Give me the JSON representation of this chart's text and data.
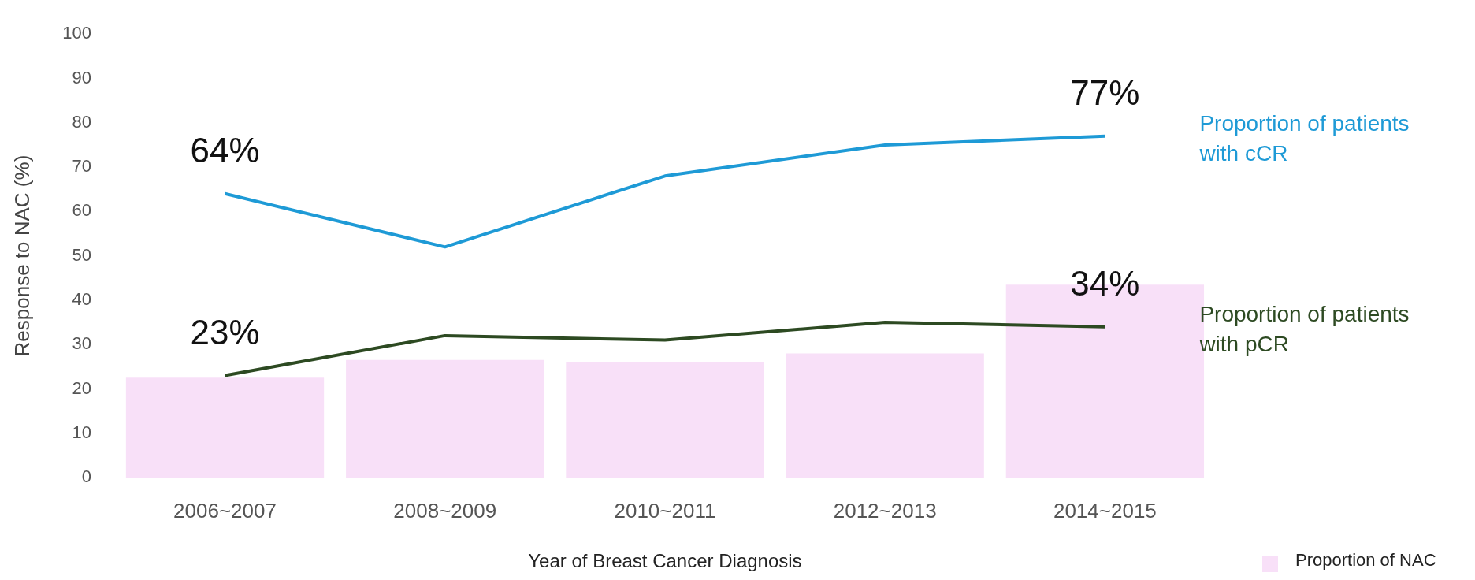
{
  "chart_data": {
    "type": "bar",
    "xlabel": "Year of Breast Cancer Diagnosis",
    "ylabel": "Response to NAC (%)",
    "categories": [
      "2006~2007",
      "2008~2009",
      "2010~2011",
      "2012~2013",
      "2014~2015"
    ],
    "series": [
      {
        "name": "Proportion of NAC",
        "color": "#f8e0f8",
        "values": [
          22.5,
          26.5,
          26,
          28,
          43.5
        ]
      },
      {
        "name": "Proportion of patients with cCR",
        "type": "line",
        "color": "#1e9ad6",
        "values": [
          64,
          52,
          68,
          75,
          77
        ],
        "value_labels": [
          "64%",
          null,
          null,
          null,
          "77%"
        ]
      },
      {
        "name": "Proportion of patients with pCR",
        "type": "line",
        "color": "#2d4a22",
        "values": [
          23,
          32,
          31,
          35,
          34
        ],
        "value_labels": [
          "23%",
          null,
          null,
          null,
          "34%"
        ]
      }
    ],
    "ylim": [
      0,
      100
    ],
    "yticks": [
      0,
      10,
      20,
      30,
      40,
      50,
      60,
      70,
      80,
      90,
      100
    ],
    "grid": false,
    "legend": "bottom right",
    "marker": "none"
  }
}
